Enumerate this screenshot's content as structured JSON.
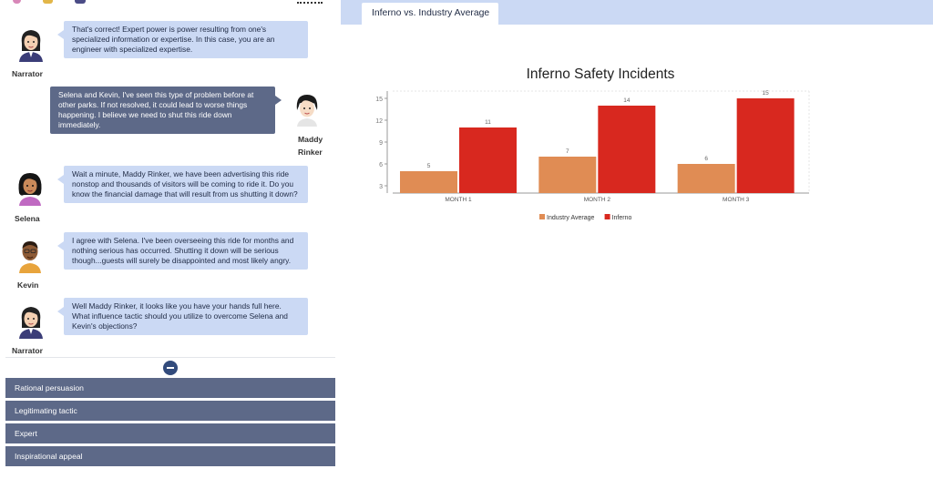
{
  "conversation": [
    {
      "speaker": "Narrator",
      "side": "left",
      "text": "That's correct! Expert power is power resulting from one's specialized information or expertise. In this case, you are an engineer with specialized expertise."
    },
    {
      "speaker": "Maddy Rinker",
      "side": "right",
      "text": "Selena and Kevin, I've seen this type of problem before at other parks. If not resolved, it could lead to worse things happening. I believe we need to shut this ride down immediately."
    },
    {
      "speaker": "Selena",
      "side": "left",
      "text": "Wait a minute, Maddy Rinker, we have been advertising this ride nonstop and thousands of visitors will be coming to ride it. Do you know the financial damage that will result from us shutting it down?"
    },
    {
      "speaker": "Kevin",
      "side": "left",
      "text": "I agree with Selena. I've been overseeing this ride for months and nothing serious has occurred. Shutting it down will be serious though...guests will surely be disappointed and most likely angry."
    },
    {
      "speaker": "Narrator",
      "side": "left",
      "text": "Well Maddy Rinker, it looks like you have your hands full here. What influence tactic should you utilize to overcome Selena and Kevin's objections?"
    }
  ],
  "speaker_labels": {
    "narrator": "Narrator",
    "maddy_line1": "Maddy",
    "maddy_line2": "Rinker",
    "selena": "Selena",
    "kevin": "Kevin"
  },
  "options": [
    "Rational persuasion",
    "Legitimating tactic",
    "Expert",
    "Inspirational appeal"
  ],
  "tab": {
    "label": "Inferno vs. Industry Average"
  },
  "colors": {
    "bubble_light": "#cbd9f4",
    "bubble_dark": "#5d6988",
    "option_bg": "#5d6988",
    "industry": "#e08c54",
    "inferno": "#d8281f"
  },
  "chart_data": {
    "type": "bar",
    "title": "Inferno Safety Incidents",
    "categories": [
      "MONTH 1",
      "MONTH 2",
      "MONTH 3"
    ],
    "series": [
      {
        "name": "Industry Average",
        "values": [
          5,
          7,
          6
        ],
        "color": "#e08c54"
      },
      {
        "name": "Inferno",
        "values": [
          11,
          14,
          15
        ],
        "color": "#d8281f"
      }
    ],
    "y_ticks": [
      3,
      6,
      9,
      12,
      15
    ],
    "ylim": [
      2,
      16
    ],
    "legend": "bottom",
    "grid": false
  }
}
